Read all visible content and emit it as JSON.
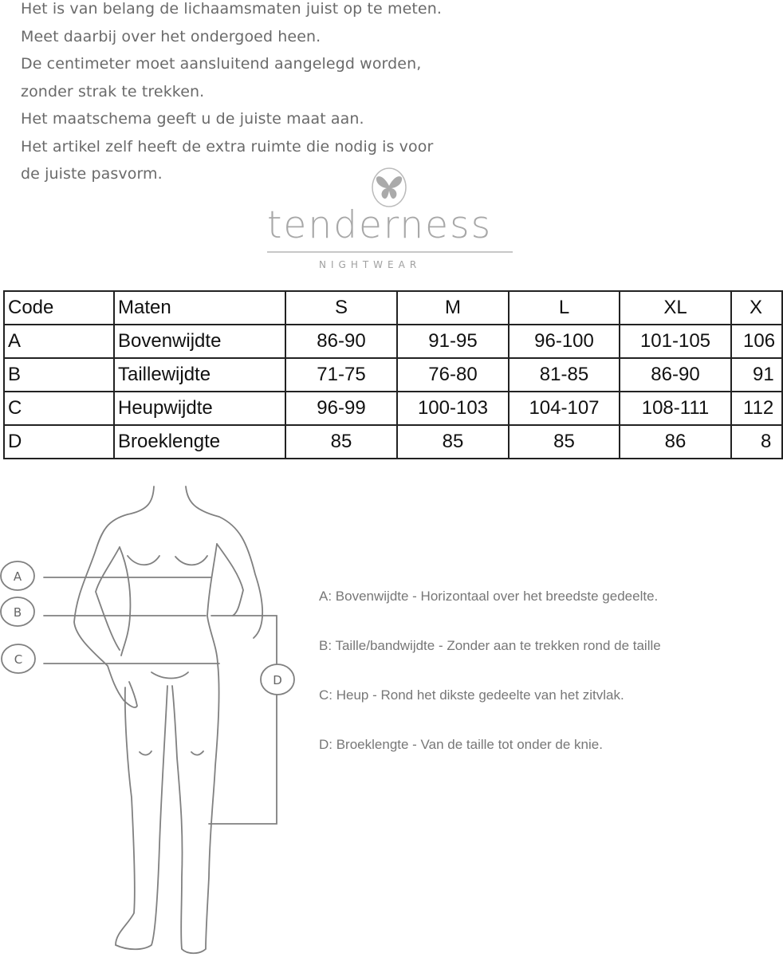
{
  "intro": {
    "lines": [
      "Het is van belang de lichaamsmaten juist op te meten.",
      "Meet daarbij over het ondergoed heen.",
      "De centimeter moet aansluitend aangelegd worden,",
      "zonder strak te trekken.",
      "Het maatschema geeft u de juiste maat aan.",
      "Het artikel zelf heeft de extra ruimte die nodig is voor",
      "de juiste pasvorm."
    ]
  },
  "logo": {
    "brand": "tenderness",
    "subtitle": "NIGHTWEAR",
    "icon": "butterfly-icon"
  },
  "size_table": {
    "headers": [
      "Code",
      "Maten",
      "S",
      "M",
      "L",
      "XL",
      "X"
    ],
    "rows": [
      [
        "A",
        "Bovenwijdte",
        "86-90",
        "91-95",
        "96-100",
        "101-105",
        "106"
      ],
      [
        "B",
        "Taillewijdte",
        "71-75",
        "76-80",
        "81-85",
        "86-90",
        "91"
      ],
      [
        "C",
        "Heupwijdte",
        "96-99",
        "100-103",
        "104-107",
        "108-111",
        "112"
      ],
      [
        "D",
        "Broeklengte",
        "85",
        "85",
        "85",
        "86",
        "8"
      ]
    ]
  },
  "figure": {
    "markers": [
      "A",
      "B",
      "C",
      "D"
    ]
  },
  "legend": [
    "A:  Bovenwijdte - Horizontaal over het breedste gedeelte.",
    "B:  Taille/bandwijdte - Zonder aan te trekken rond de taille",
    "C:  Heup - Rond het dikste gedeelte van het zitvlak.",
    "D:  Broeklengte - Van de taille tot onder de knie."
  ]
}
